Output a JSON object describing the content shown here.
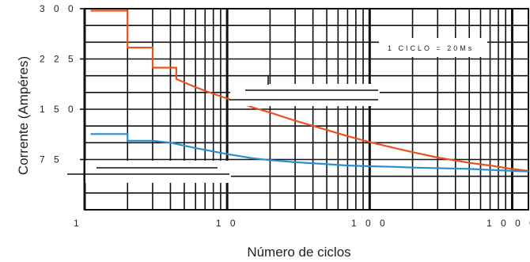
{
  "chart_data": {
    "type": "line",
    "xscale": "log",
    "xlim": [
      1,
      1300
    ],
    "ylim": [
      0,
      300
    ],
    "xticks": [
      {
        "value": 1,
        "label": "1"
      },
      {
        "value": 10,
        "label": "10"
      },
      {
        "value": 100,
        "label": "100"
      },
      {
        "value": 1000,
        "label": "1000"
      }
    ],
    "yticks": [
      {
        "value": 300,
        "label": "300"
      },
      {
        "value": 225,
        "label": "225"
      },
      {
        "value": 150,
        "label": "150"
      },
      {
        "value": 75,
        "label": "75"
      }
    ],
    "xlabel": "Número de ciclos",
    "ylabel": "Corrente (Ampéres)",
    "annotation": "1 CICLO = 20Ms",
    "grid": true,
    "series": [
      {
        "color": "#e8531f",
        "points": [
          [
            1.1,
            297
          ],
          [
            2,
            297
          ],
          [
            2,
            242
          ],
          [
            3,
            242
          ],
          [
            3,
            212
          ],
          [
            4.4,
            212
          ],
          [
            4.4,
            195
          ],
          [
            6,
            183
          ],
          [
            8,
            173
          ],
          [
            10,
            166
          ],
          [
            15,
            153
          ],
          [
            20,
            145
          ],
          [
            30,
            133
          ],
          [
            50,
            119
          ],
          [
            70,
            110
          ],
          [
            100,
            101
          ],
          [
            150,
            92
          ],
          [
            200,
            86
          ],
          [
            300,
            78
          ],
          [
            500,
            70
          ],
          [
            700,
            66
          ],
          [
            1000,
            61
          ],
          [
            1300,
            58
          ]
        ]
      },
      {
        "color": "#2a8fd0",
        "points": [
          [
            1.1,
            113
          ],
          [
            2,
            113
          ],
          [
            2,
            103
          ],
          [
            3,
            103
          ],
          [
            4,
            100
          ],
          [
            6,
            92
          ],
          [
            8,
            87
          ],
          [
            10,
            83
          ],
          [
            15,
            77
          ],
          [
            20,
            74
          ],
          [
            30,
            71
          ],
          [
            50,
            68
          ],
          [
            70,
            66
          ],
          [
            100,
            65
          ],
          [
            150,
            64
          ],
          [
            200,
            63
          ],
          [
            500,
            61
          ],
          [
            1000,
            58
          ],
          [
            1300,
            57
          ]
        ]
      }
    ]
  }
}
